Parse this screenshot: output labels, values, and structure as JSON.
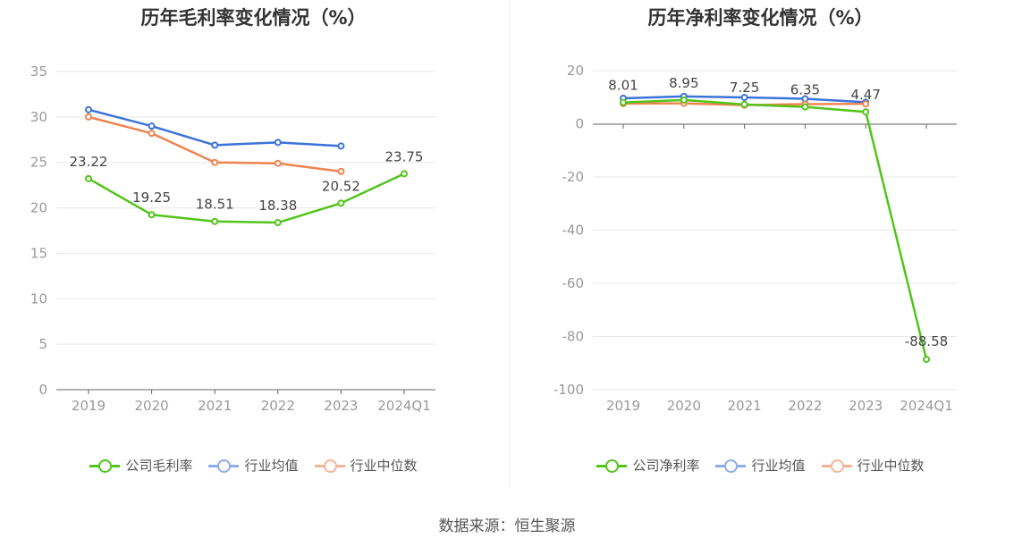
{
  "chart_data": [
    {
      "type": "line",
      "title": "历年毛利率变化情况（%）",
      "categories": [
        "2019",
        "2020",
        "2021",
        "2022",
        "2023",
        "2024Q1"
      ],
      "ylim": [
        0,
        35
      ],
      "yticks": [
        0,
        5,
        10,
        15,
        20,
        25,
        30,
        35
      ],
      "grid": true,
      "legend_position": "bottom",
      "series": [
        {
          "name": "公司毛利率",
          "color": "#52c41a",
          "values": [
            23.22,
            19.25,
            18.51,
            18.38,
            20.52,
            23.75
          ],
          "labels": [
            "23.22",
            "19.25",
            "18.51",
            "18.38",
            "20.52",
            "23.75"
          ]
        },
        {
          "name": "行业均值",
          "color": "#3b73d9",
          "legend_color": "#8cacea",
          "values": [
            30.8,
            29.0,
            26.9,
            27.2,
            26.8,
            null
          ]
        },
        {
          "name": "行业中位数",
          "color": "#f0834f",
          "legend_color": "#f6b496",
          "values": [
            30.0,
            28.2,
            25.0,
            24.9,
            24.0,
            null
          ]
        }
      ]
    },
    {
      "type": "line",
      "title": "历年净利率变化情况（%）",
      "categories": [
        "2019",
        "2020",
        "2021",
        "2022",
        "2023",
        "2024Q1"
      ],
      "ylim": [
        -100,
        20
      ],
      "yticks": [
        -100,
        -80,
        -60,
        -40,
        -20,
        0,
        20
      ],
      "grid": true,
      "legend_position": "bottom",
      "series": [
        {
          "name": "公司净利率",
          "color": "#52c41a",
          "values": [
            8.01,
            8.95,
            7.25,
            6.35,
            4.47,
            -88.58
          ],
          "labels": [
            "8.01",
            "8.95",
            "7.25",
            "6.35",
            "4.47",
            "-88.58"
          ]
        },
        {
          "name": "行业均值",
          "color": "#3b73d9",
          "legend_color": "#8cacea",
          "values": [
            9.6,
            10.3,
            9.9,
            9.4,
            8.1,
            null
          ]
        },
        {
          "name": "行业中位数",
          "color": "#f0834f",
          "legend_color": "#f6b496",
          "values": [
            7.6,
            7.7,
            7.0,
            7.4,
            7.5,
            null
          ]
        }
      ]
    }
  ],
  "source_text": "数据来源：恒生聚源"
}
